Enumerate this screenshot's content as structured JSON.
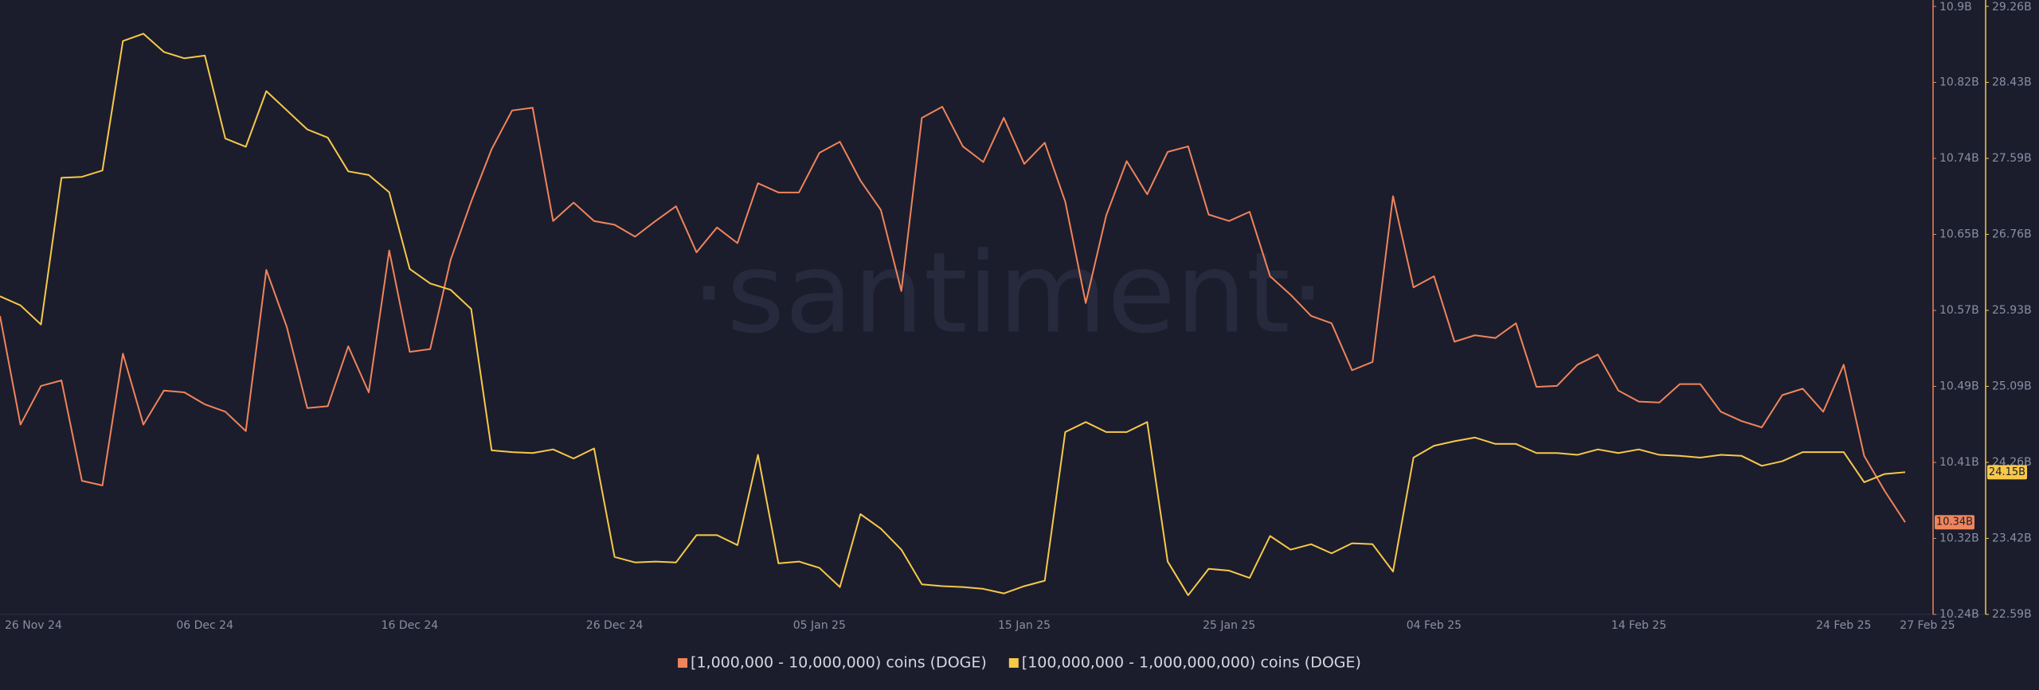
{
  "chart_data": {
    "type": "line",
    "watermark": "·santiment·",
    "categories": [
      "26 Nov 24",
      null,
      null,
      null,
      null,
      null,
      null,
      null,
      null,
      null,
      "06 Dec 24",
      null,
      null,
      null,
      null,
      null,
      null,
      null,
      null,
      null,
      "16 Dec 24",
      null,
      null,
      null,
      null,
      null,
      null,
      null,
      null,
      null,
      "26 Dec 24",
      null,
      null,
      null,
      null,
      null,
      null,
      null,
      null,
      null,
      "05 Jan 25",
      null,
      null,
      null,
      null,
      null,
      null,
      null,
      null,
      null,
      "15 Jan 25",
      null,
      null,
      null,
      null,
      null,
      null,
      null,
      null,
      null,
      "25 Jan 25",
      null,
      null,
      null,
      null,
      null,
      null,
      null,
      null,
      null,
      "04 Feb 25",
      null,
      null,
      null,
      null,
      null,
      null,
      null,
      null,
      null,
      "14 Feb 25",
      null,
      null,
      null,
      null,
      null,
      null,
      null,
      null,
      null,
      "24 Feb 25",
      null,
      null,
      "27 Feb 25"
    ],
    "ylim": [
      10.24,
      10.9
    ],
    "yticks": [
      {
        "value": 10.24,
        "label": "10.24B"
      },
      {
        "value": 10.3225,
        "label": "10.32B"
      },
      {
        "value": 10.405,
        "label": "10.41B"
      },
      {
        "value": 10.4875,
        "label": "10.49B"
      },
      {
        "value": 10.57,
        "label": "10.57B"
      },
      {
        "value": 10.6525,
        "label": "10.65B"
      },
      {
        "value": 10.735,
        "label": "10.74B"
      },
      {
        "value": 10.8175,
        "label": "10.82B"
      },
      {
        "value": 10.9,
        "label": "10.9B"
      }
    ],
    "y2lim": [
      22.59,
      29.26
    ],
    "y2ticks": [
      {
        "value": 22.59,
        "label": "22.59B"
      },
      {
        "value": 23.42375,
        "label": "23.42B"
      },
      {
        "value": 24.2575,
        "label": "24.26B"
      },
      {
        "value": 25.09125,
        "label": "25.09B"
      },
      {
        "value": 25.925,
        "label": "25.93B"
      },
      {
        "value": 26.75875,
        "label": "26.76B"
      },
      {
        "value": 27.5925,
        "label": "27.59B"
      },
      {
        "value": 28.42625,
        "label": "28.43B"
      },
      {
        "value": 29.26,
        "label": "29.26B"
      }
    ],
    "series": [
      {
        "name": "[1,000,000 - 10,000,000) coins (DOGE)",
        "color": "#f0845a",
        "last_label": "10.34B",
        "values": [
          10.564,
          10.446,
          10.488,
          10.494,
          10.385,
          10.38,
          10.523,
          10.446,
          10.483,
          10.481,
          10.468,
          10.46,
          10.439,
          10.614,
          10.552,
          10.464,
          10.466,
          10.531,
          10.481,
          10.635,
          10.525,
          10.528,
          10.625,
          10.688,
          10.745,
          10.787,
          10.79,
          10.667,
          10.687,
          10.667,
          10.663,
          10.65,
          10.667,
          10.683,
          10.633,
          10.66,
          10.643,
          10.708,
          10.698,
          10.698,
          10.741,
          10.753,
          10.711,
          10.679,
          10.591,
          10.779,
          10.791,
          10.748,
          10.731,
          10.779,
          10.729,
          10.752,
          10.688,
          10.578,
          10.673,
          10.732,
          10.696,
          10.742,
          10.748,
          10.674,
          10.667,
          10.677,
          10.607,
          10.587,
          10.564,
          10.556,
          10.505,
          10.514,
          10.694,
          10.595,
          10.607,
          10.536,
          10.543,
          10.54,
          10.556,
          10.487,
          10.488,
          10.511,
          10.522,
          10.483,
          10.471,
          10.47,
          10.49,
          10.49,
          10.46,
          10.45,
          10.443,
          10.478,
          10.485,
          10.46,
          10.511,
          10.412,
          10.374,
          10.34
        ]
      },
      {
        "name": "[100,000,000 - 1,000,000,000) coins (DOGE)",
        "color": "#f7c948",
        "axis": "y2",
        "last_label": "24.15B",
        "values": [
          26.08,
          25.98,
          25.77,
          27.38,
          27.39,
          27.46,
          28.88,
          28.96,
          28.76,
          28.69,
          28.72,
          27.81,
          27.72,
          28.33,
          28.12,
          27.91,
          27.82,
          27.45,
          27.41,
          27.22,
          26.38,
          26.22,
          26.15,
          25.94,
          24.39,
          24.37,
          24.36,
          24.4,
          24.3,
          24.41,
          23.22,
          23.16,
          23.17,
          23.16,
          23.46,
          23.46,
          23.35,
          24.34,
          23.15,
          23.17,
          23.1,
          22.89,
          23.69,
          23.53,
          23.3,
          22.92,
          22.9,
          22.89,
          22.87,
          22.82,
          22.9,
          22.96,
          24.59,
          24.7,
          24.59,
          24.59,
          24.7,
          23.17,
          22.8,
          23.09,
          23.07,
          22.99,
          23.45,
          23.3,
          23.36,
          23.26,
          23.37,
          23.36,
          23.06,
          24.31,
          24.44,
          24.49,
          24.53,
          24.46,
          24.46,
          24.36,
          24.36,
          24.34,
          24.4,
          24.36,
          24.4,
          24.34,
          24.33,
          24.31,
          24.34,
          24.33,
          24.22,
          24.27,
          24.37,
          24.37,
          24.37,
          24.04,
          24.13,
          24.15
        ]
      }
    ]
  }
}
